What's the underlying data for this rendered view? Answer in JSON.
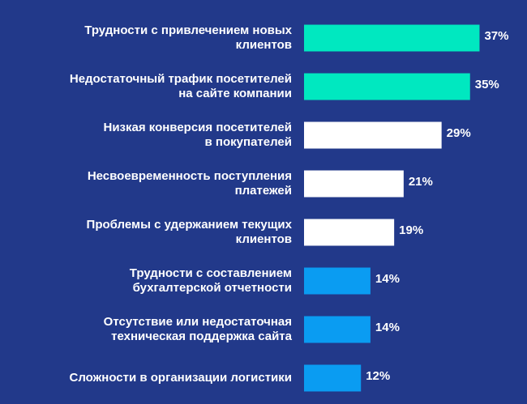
{
  "chart_data": {
    "type": "bar",
    "orientation": "horizontal",
    "categories": [
      "Трудности с привлечением новых\nклиентов",
      "Недостаточный трафик посетителей\nна сайте компании",
      "Низкая конверсия посетителей\nв покупателей",
      "Несвоевременность поступления\nплатежей",
      "Проблемы с удержанием текущих\nклиентов",
      "Трудности с составлением\nбухгалтерской отчетности",
      "Отсутствие или недостаточная\nтехническая поддержка сайта",
      "Сложности в организации логистики"
    ],
    "values": [
      37,
      35,
      29,
      21,
      19,
      14,
      14,
      12
    ],
    "value_labels": [
      "37%",
      "35%",
      "29%",
      "21%",
      "19%",
      "14%",
      "14%",
      "12%"
    ],
    "colors": [
      "#00e8c0",
      "#00e8c0",
      "#ffffff",
      "#ffffff",
      "#ffffff",
      "#0a9cf2",
      "#0a9cf2",
      "#0a9cf2"
    ],
    "xlim": [
      0,
      40
    ]
  }
}
